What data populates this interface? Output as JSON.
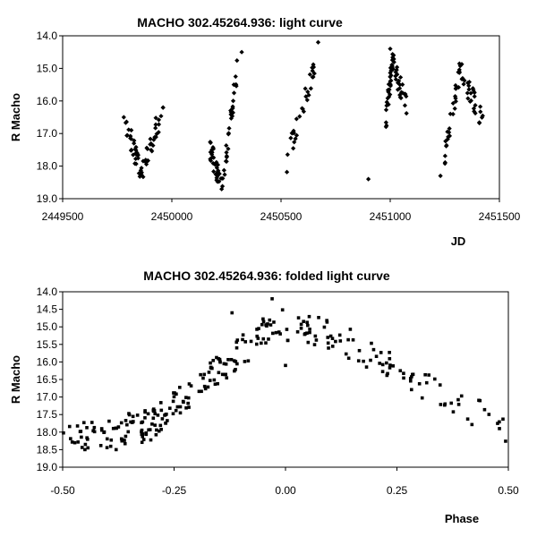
{
  "chart_data": [
    {
      "type": "scatter",
      "title": "MACHO 302.45264.936: light curve",
      "xlabel": "JD",
      "ylabel": "R Macho",
      "xlim": [
        2449500,
        2451500
      ],
      "ylim": [
        19.0,
        14.0
      ],
      "y_inverted": true,
      "xticks": [
        2449500,
        2450000,
        2450500,
        2451000,
        2451500
      ],
      "xtick_labels": [
        "2449500",
        "2450000",
        "2450500",
        "2451000",
        "2451500"
      ],
      "yticks": [
        14,
        15,
        16,
        17,
        18,
        19
      ],
      "ytick_labels": [
        "14.0",
        "15.0",
        "16.0",
        "17.0",
        "18.0",
        "19.0"
      ],
      "marker": "diamond",
      "segments": [
        {
          "x0": 2449780,
          "x1": 2449860,
          "y0": 16.5,
          "y1": 18.2
        },
        {
          "x0": 2449860,
          "x1": 2449960,
          "y0": 18.2,
          "y1": 16.2
        },
        {
          "x0": 2450170,
          "x1": 2450230,
          "y0": 17.4,
          "y1": 18.6
        },
        {
          "x0": 2450230,
          "x1": 2450300,
          "y0": 18.6,
          "y1": 15.0
        },
        {
          "x0": 2450520,
          "x1": 2450680,
          "y0": 18.0,
          "y1": 14.3
        },
        {
          "x0": 2450980,
          "x1": 2451010,
          "y0": 16.6,
          "y1": 14.8
        },
        {
          "x0": 2451010,
          "x1": 2451080,
          "y0": 14.8,
          "y1": 16.3
        },
        {
          "x0": 2451240,
          "x1": 2451320,
          "y0": 18.1,
          "y1": 15.0
        },
        {
          "x0": 2451320,
          "x1": 2451430,
          "y0": 15.0,
          "y1": 16.8
        }
      ],
      "points_per_segment": 30,
      "scatter": 0.35,
      "extra_points": [
        {
          "x": 2450320,
          "y": 14.5
        },
        {
          "x": 2450900,
          "y": 18.4
        },
        {
          "x": 2451000,
          "y": 14.4
        },
        {
          "x": 2450670,
          "y": 14.2
        },
        {
          "x": 2451230,
          "y": 18.3
        },
        {
          "x": 2449780,
          "y": 16.5
        },
        {
          "x": 2449960,
          "y": 16.2
        }
      ]
    },
    {
      "type": "scatter",
      "title": "MACHO 302.45264.936: folded light curve",
      "xlabel": "Phase",
      "ylabel": "R Macho",
      "xlim": [
        -0.5,
        0.5
      ],
      "ylim": [
        19.0,
        14.0
      ],
      "y_inverted": true,
      "xticks": [
        -0.5,
        -0.25,
        0,
        0.25,
        0.5
      ],
      "xtick_labels": [
        "-0.50",
        "-0.25",
        "0.00",
        "0.25",
        "0.50"
      ],
      "yticks": [
        14.0,
        14.5,
        15.0,
        15.5,
        16.0,
        16.5,
        17.0,
        17.5,
        18.0,
        18.5,
        19.0
      ],
      "ytick_labels": [
        "14.0",
        "14.5",
        "15.0",
        "15.5",
        "16.0",
        "16.5",
        "17.0",
        "17.5",
        "18.0",
        "18.5",
        "19.0"
      ],
      "marker": "square",
      "segments": [
        {
          "x0": -0.5,
          "x1": -0.3,
          "y0": 18.2,
          "y1": 17.8
        },
        {
          "x0": -0.3,
          "x1": -0.02,
          "y0": 17.8,
          "y1": 14.9
        },
        {
          "x0": -0.02,
          "x1": 0.1,
          "y0": 14.9,
          "y1": 15.2
        },
        {
          "x0": 0.1,
          "x1": 0.3,
          "y0": 15.2,
          "y1": 16.6
        },
        {
          "x0": 0.3,
          "x1": 0.5,
          "y0": 16.6,
          "y1": 17.9
        }
      ],
      "points_per_segment": [
        70,
        110,
        30,
        40,
        25
      ],
      "scatter": 0.45,
      "extra_points": [
        {
          "x": -0.03,
          "y": 14.2
        },
        {
          "x": -0.12,
          "y": 14.6
        },
        {
          "x": 0.0,
          "y": 16.1
        },
        {
          "x": 0.48,
          "y": 17.9
        },
        {
          "x": -0.45,
          "y": 18.5
        },
        {
          "x": -0.38,
          "y": 18.5
        }
      ]
    }
  ]
}
